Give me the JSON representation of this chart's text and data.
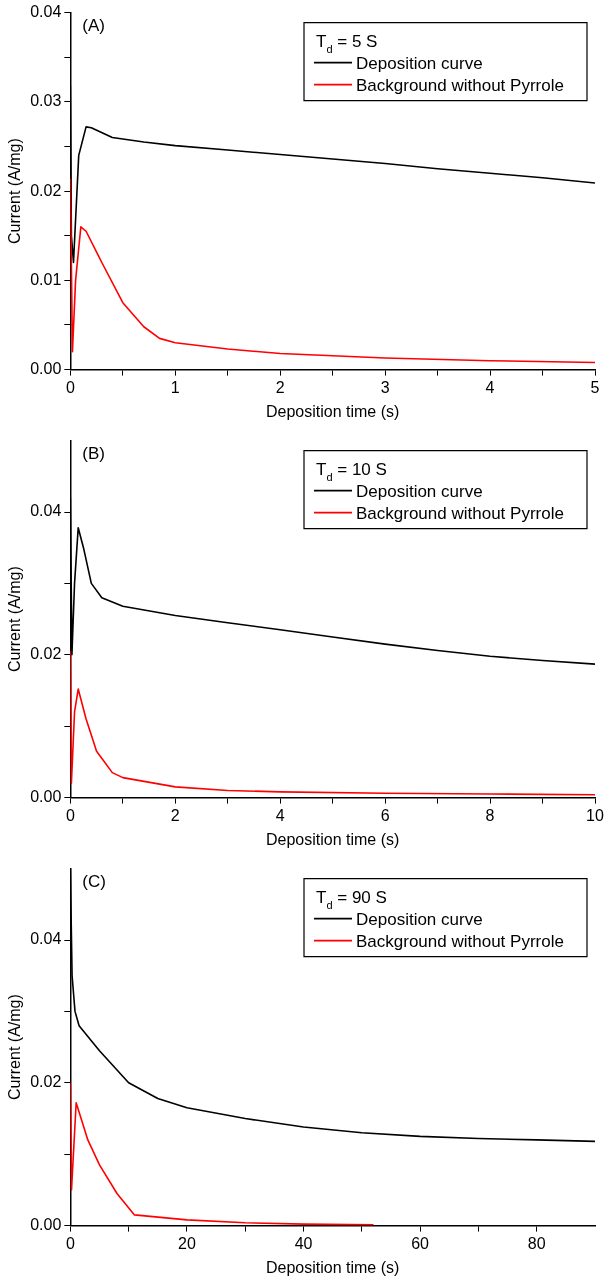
{
  "chart_data": [
    {
      "type": "line",
      "xlabel": "Deposition time (s)",
      "ylabel": "Current (A/mg)",
      "legend_title": "T$_{d}$ = 5 S",
      "legend": "top right",
      "grid": false,
      "marker": "none",
      "line_style": "solid",
      "annotations": [
        "(A)"
      ],
      "xlim": [
        0,
        5
      ],
      "xticks": [
        0,
        {
          "value": 0.5,
          "label": null
        },
        1,
        {
          "value": 1.5,
          "label": null
        },
        2,
        {
          "value": 2.5,
          "label": null
        },
        3,
        {
          "value": 3.5,
          "label": null
        },
        4,
        {
          "value": 4.5,
          "label": null
        },
        5
      ],
      "ylim": [
        0,
        0.04
      ],
      "yticks": [
        {
          "value": 0,
          "label": "0.00"
        },
        {
          "value": 0.005,
          "label": null
        },
        {
          "value": 0.01,
          "label": "0.01"
        },
        {
          "value": 0.015,
          "label": null
        },
        {
          "value": 0.02,
          "label": "0.02"
        },
        {
          "value": 0.025,
          "label": null
        },
        {
          "value": 0.03,
          "label": "0.03"
        },
        {
          "value": 0.035,
          "label": null
        },
        {
          "value": 0.04,
          "label": "0.04"
        }
      ],
      "series": [
        {
          "name": "Deposition curve",
          "color": "#000000",
          "x": [
            0,
            0.01,
            0.03,
            0.08,
            0.15,
            0.2,
            0.4,
            0.7,
            1,
            1.5,
            2,
            2.5,
            3,
            3.5,
            4,
            4.5,
            5
          ],
          "values": [
            0.0318,
            0.015,
            0.012,
            0.024,
            0.0272,
            0.0271,
            0.026,
            0.0255,
            0.0251,
            0.0246,
            0.0241,
            0.0236,
            0.0231,
            0.0225,
            0.022,
            0.0215,
            0.0209
          ]
        },
        {
          "name": "Background without Pyrrole",
          "color": "#ff0000",
          "x": [
            0,
            0.02,
            0.05,
            0.1,
            0.15,
            0.3,
            0.5,
            0.7,
            0.85,
            1,
            1.5,
            2,
            3,
            4,
            5
          ],
          "values": [
            0.0214,
            0.002,
            0.01,
            0.016,
            0.0155,
            0.012,
            0.0075,
            0.0048,
            0.0035,
            0.003,
            0.0023,
            0.0018,
            0.0013,
            0.001,
            0.0008
          ]
        }
      ]
    },
    {
      "type": "line",
      "xlabel": "Deposition time (s)",
      "ylabel": "Current (A/mg)",
      "legend_title": "T$_{d}$ = 10 S",
      "legend": "top right",
      "grid": false,
      "marker": "none",
      "line_style": "solid",
      "annotations": [
        "(B)"
      ],
      "xlim": [
        0,
        10
      ],
      "xticks": [
        0,
        {
          "value": 1,
          "label": null
        },
        2,
        {
          "value": 3,
          "label": null
        },
        4,
        {
          "value": 5,
          "label": null
        },
        6,
        {
          "value": 7,
          "label": null
        },
        8,
        {
          "value": 9,
          "label": null
        },
        10
      ],
      "ylim": [
        0,
        0.05
      ],
      "yticks": [
        {
          "value": 0,
          "label": "0.00"
        },
        {
          "value": 0.01,
          "label": null
        },
        {
          "value": 0.02,
          "label": "0.02"
        },
        {
          "value": 0.03,
          "label": null
        },
        {
          "value": 0.04,
          "label": "0.04"
        }
      ],
      "series": [
        {
          "name": "Deposition curve",
          "color": "#000000",
          "x": [
            0,
            0.03,
            0.08,
            0.15,
            0.25,
            0.4,
            0.6,
            1,
            2,
            3,
            4,
            5,
            6,
            7,
            8,
            9,
            10
          ],
          "values": [
            0.042,
            0.02,
            0.03,
            0.0378,
            0.035,
            0.03,
            0.028,
            0.0268,
            0.0255,
            0.0245,
            0.0235,
            0.0225,
            0.0215,
            0.0206,
            0.0198,
            0.0192,
            0.0187
          ]
        },
        {
          "name": "Background without Pyrrole",
          "color": "#ff0000",
          "x": [
            0,
            0.02,
            0.08,
            0.15,
            0.3,
            0.5,
            0.8,
            1,
            2,
            3,
            4,
            6,
            8,
            10
          ],
          "values": [
            0.0205,
            0.002,
            0.012,
            0.0152,
            0.011,
            0.0065,
            0.0035,
            0.0028,
            0.0015,
            0.001,
            0.0008,
            0.0006,
            0.0005,
            0.0004
          ]
        }
      ]
    },
    {
      "type": "line",
      "xlabel": "Deposition time (s)",
      "ylabel": "Current (A/mg)",
      "legend_title": "T$_{d}$ = 90 S",
      "legend": "top right",
      "grid": false,
      "marker": "none",
      "line_style": "solid",
      "annotations": [
        "(C)"
      ],
      "xlim": [
        0,
        90
      ],
      "xticks": [
        0,
        {
          "value": 10,
          "label": null
        },
        20,
        {
          "value": 30,
          "label": null
        },
        40,
        {
          "value": 50,
          "label": null
        },
        60,
        {
          "value": 70,
          "label": null
        },
        80
      ],
      "ylim": [
        0,
        0.05
      ],
      "yticks": [
        {
          "value": 0,
          "label": "0.00"
        },
        {
          "value": 0.01,
          "label": null
        },
        {
          "value": 0.02,
          "label": "0.02"
        },
        {
          "value": 0.03,
          "label": null
        },
        {
          "value": 0.04,
          "label": "0.04"
        }
      ],
      "series": [
        {
          "name": "Deposition curve",
          "color": "#000000",
          "x": [
            0,
            0.3,
            0.8,
            1.5,
            5,
            10,
            15,
            20,
            30,
            40,
            50,
            60,
            70,
            80,
            90
          ],
          "values": [
            0.05,
            0.035,
            0.03,
            0.028,
            0.0245,
            0.02,
            0.0178,
            0.0165,
            0.015,
            0.0138,
            0.013,
            0.0125,
            0.0122,
            0.012,
            0.0118
          ]
        },
        {
          "name": "Background without Pyrrole",
          "color": "#ff0000",
          "x": [
            0,
            0.2,
            1,
            3,
            5,
            8,
            11,
            20,
            30,
            40,
            52
          ],
          "values": [
            0.02,
            0.005,
            0.0172,
            0.012,
            0.0085,
            0.0045,
            0.0015,
            0.0008,
            0.0004,
            0.0002,
            0.0001
          ]
        }
      ]
    }
  ]
}
